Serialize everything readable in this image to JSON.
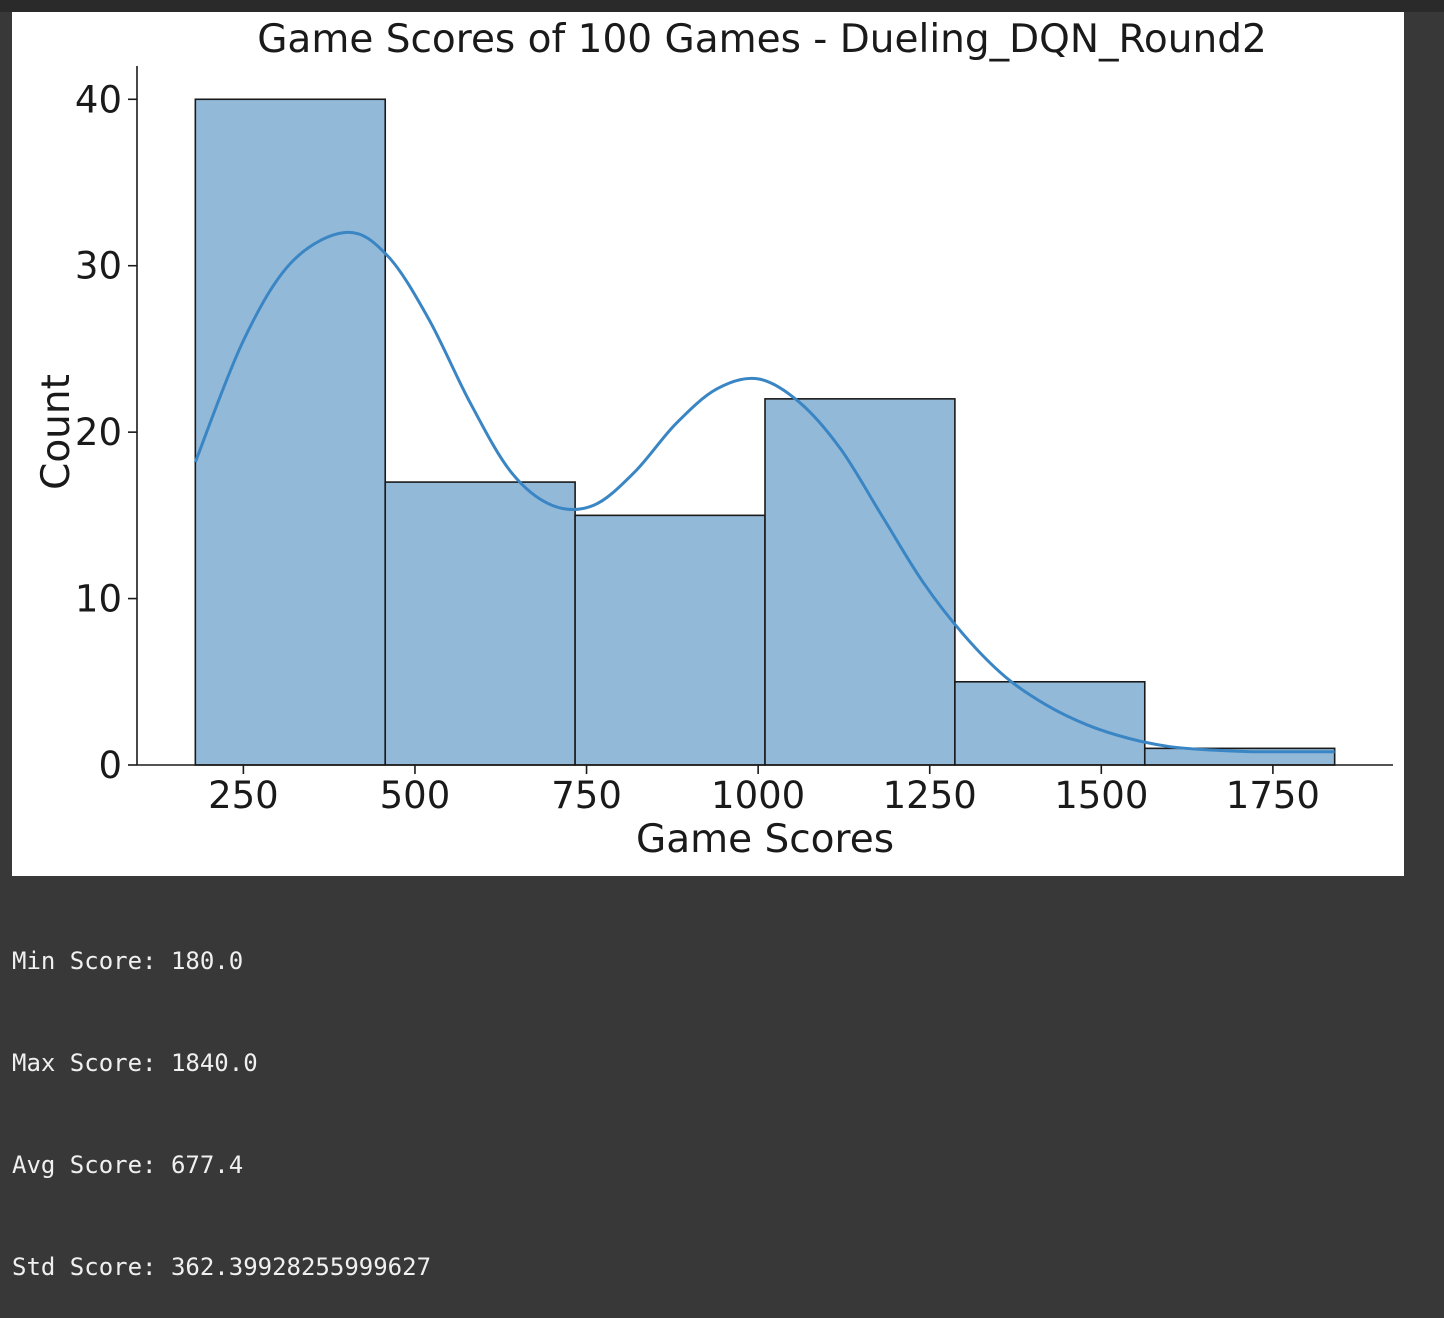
{
  "chart_data": {
    "type": "bar",
    "subtype": "histogram_with_kde",
    "title": "Game Scores of 100 Games - Dueling_DQN_Round2",
    "xlabel": "Game Scores",
    "ylabel": "Count",
    "xlim": [
      95,
      1925
    ],
    "ylim": [
      0,
      42
    ],
    "xticks": [
      250,
      500,
      750,
      1000,
      1250,
      1500,
      1750
    ],
    "yticks": [
      0,
      10,
      20,
      30,
      40
    ],
    "bins": [
      {
        "start": 180,
        "end": 456.67,
        "count": 40
      },
      {
        "start": 456.67,
        "end": 733.33,
        "count": 17
      },
      {
        "start": 733.33,
        "end": 1010,
        "count": 15
      },
      {
        "start": 1010,
        "end": 1286.67,
        "count": 22
      },
      {
        "start": 1286.67,
        "end": 1563.33,
        "count": 5
      },
      {
        "start": 1563.33,
        "end": 1840,
        "count": 1
      }
    ],
    "kde": {
      "x": [
        180,
        250,
        320,
        400,
        460,
        520,
        580,
        640,
        700,
        760,
        820,
        880,
        940,
        1000,
        1060,
        1120,
        1180,
        1240,
        1300,
        1360,
        1420,
        1480,
        1540,
        1600,
        1660,
        1720,
        1780,
        1840
      ],
      "y": [
        18.2,
        25.5,
        30.2,
        32.0,
        30.6,
        26.8,
        21.8,
        17.6,
        15.6,
        15.6,
        17.6,
        20.5,
        22.6,
        23.2,
        21.8,
        19.0,
        15.0,
        11.0,
        7.8,
        5.3,
        3.6,
        2.4,
        1.6,
        1.1,
        0.9,
        0.8,
        0.8,
        0.8
      ]
    },
    "colors": {
      "bar_fill": "#93b9d9",
      "bar_edge": "#1a1a1a",
      "kde_line": "#3a86c4"
    }
  },
  "stats": {
    "min": "Min Score: 180.0",
    "max": "Max Score: 1840.0",
    "avg": "Avg Score: 677.4",
    "std": "Std Score: 362.39928255999627"
  }
}
